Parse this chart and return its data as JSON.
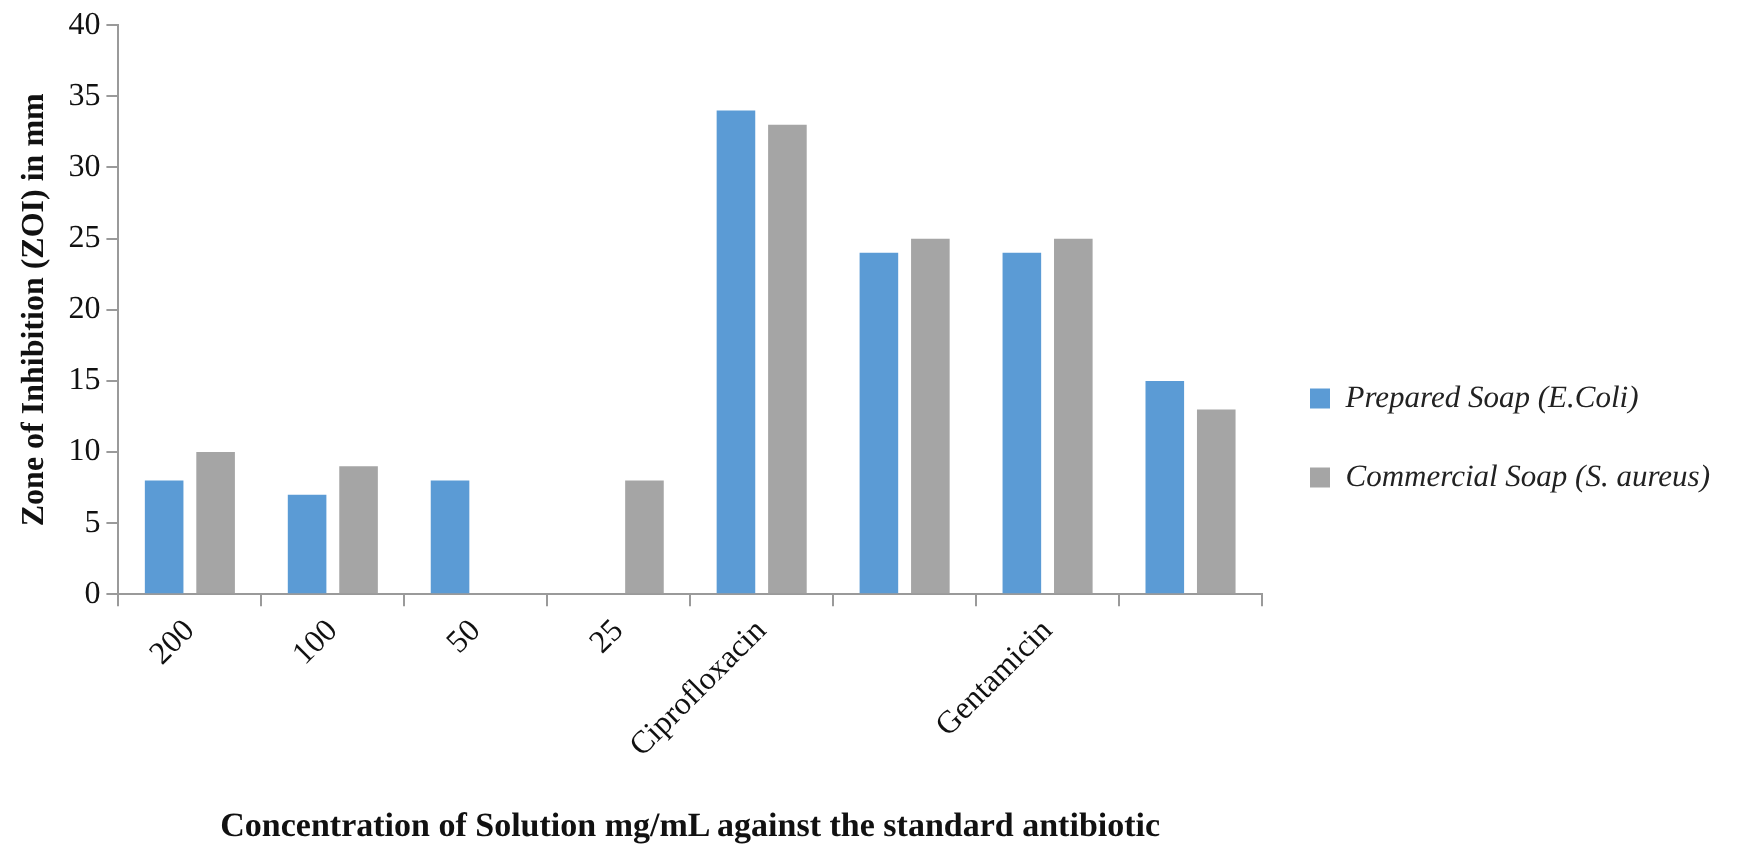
{
  "chart_data": {
    "type": "bar",
    "xlabel": "Concentration of Solution mg/mL against the standard antibiotic",
    "ylabel": "Zone of Inhibition (ZOI) in mm",
    "categories": [
      "200",
      "100",
      "50",
      "25",
      "Ciprofloxacin",
      null,
      "Gentamicin",
      null
    ],
    "series": [
      {
        "name": "Prepared Soap (E.Coli)",
        "color": "#5b9bd5",
        "values": [
          8,
          7,
          8,
          0,
          34,
          24,
          24,
          15
        ]
      },
      {
        "name": "Commercial Soap (S. aureus)",
        "color": "#a5a5a5",
        "values": [
          10,
          9,
          0,
          8,
          33,
          25,
          25,
          13
        ]
      }
    ],
    "ylim": [
      0,
      40
    ],
    "yticks": [
      0,
      5,
      10,
      15,
      20,
      25,
      30,
      35,
      40
    ],
    "grid": false,
    "legend": "right"
  }
}
